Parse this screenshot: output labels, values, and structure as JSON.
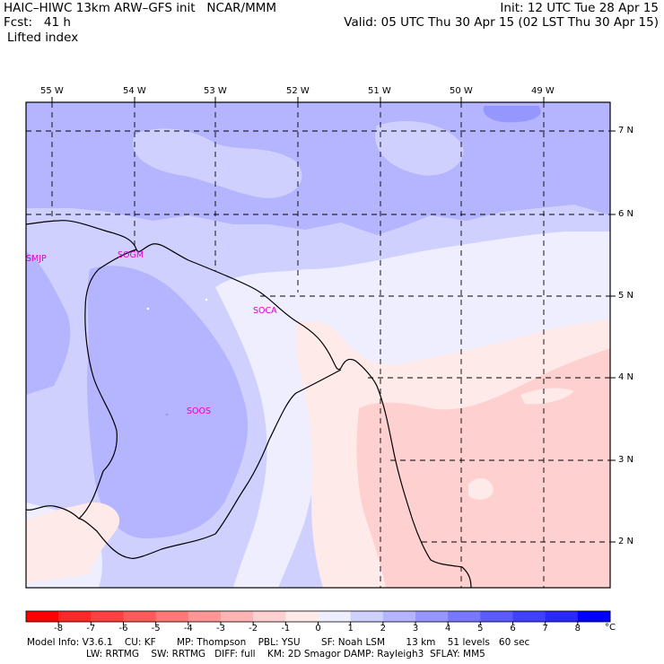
{
  "header": {
    "title": "HAIC–HIWC 13km ARW–GFS init   NCAR/MMM",
    "forecast": "Fcst:   41 h",
    "field": "Lifted index",
    "init": "Init: 12 UTC Tue 28 Apr 15",
    "valid": "Valid: 05 UTC Thu 30 Apr 15 (02 LST Thu 30 Apr 15)"
  },
  "longitude_labels": [
    "55 W",
    "54 W",
    "53 W",
    "52 W",
    "51 W",
    "50 W",
    "49 W"
  ],
  "latitude_labels": [
    "7 N",
    "6 N",
    "5 N",
    "4 N",
    "3 N",
    "2 N"
  ],
  "stations": [
    "SMJP",
    "SOGM",
    "SOCA",
    "SOOS"
  ],
  "colorbar": {
    "ticks": [
      "-8",
      "-7",
      "-6",
      "-5",
      "-4",
      "-3",
      "-2",
      "-1",
      "0",
      "1",
      "2",
      "3",
      "4",
      "5",
      "6",
      "7",
      "8"
    ],
    "unit": "°C",
    "colors": [
      "#ff0000",
      "#ff2828",
      "#ff4040",
      "#ff5a5a",
      "#ff7878",
      "#ff9696",
      "#ffb4b4",
      "#ffd0d0",
      "#ffeaea",
      "#eeeeff",
      "#d0d0ff",
      "#b4b4ff",
      "#9696ff",
      "#7878ff",
      "#5a5aff",
      "#4040ff",
      "#2828ff",
      "#0000ff"
    ]
  },
  "model_info": {
    "line1": "Model Info: V3.6.1    CU: KF       MP: Thompson    PBL: YSU       SF: Noah LSM       13 km    51 levels   60 sec",
    "line2": "LW: RRTMG    SW: RRTMG   DIFF: full    KM: 2D Smagor DAMP: Rayleigh3  SFLAY: MM5"
  }
}
